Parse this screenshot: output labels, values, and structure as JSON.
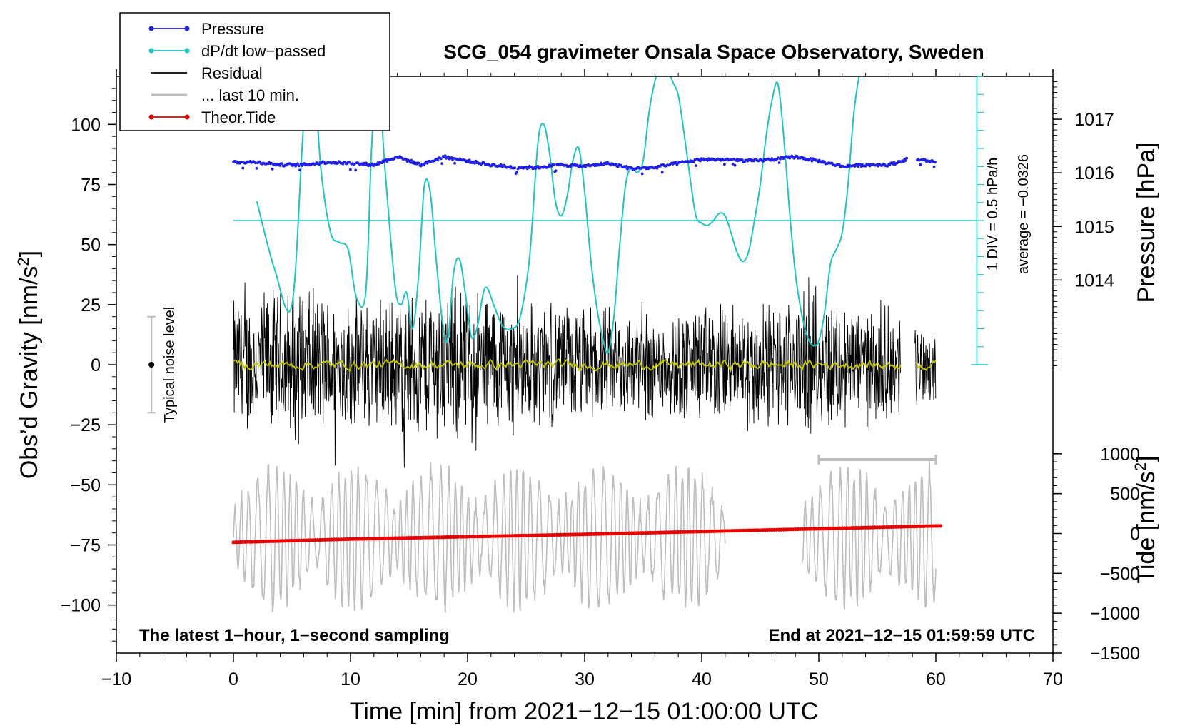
{
  "chart_data": {
    "type": "line",
    "title": "SCG_054 gravimeter Onsala Space Observatory, Sweden",
    "xlabel": "Time [min] from 2021−12−15 01:00:00 UTC",
    "ylabel_left": "Obs’d Gravity [nm/s",
    "ylabel_left_sup": "2",
    "ylabel_left_close": "]",
    "ylabel_right_pressure": "Pressure [hPa]",
    "ylabel_right_tide": "Tide [nm/s",
    "ylabel_right_tide_sup": "2",
    "ylabel_right_tide_close": "]",
    "xlim": [
      -10,
      70
    ],
    "ylim_gravity": [
      -120,
      120
    ],
    "ylim_pressure": [
      1012.3,
      1017.8
    ],
    "ylim_tide": [
      -1500,
      1500
    ],
    "x_ticks": [
      -10,
      0,
      10,
      20,
      30,
      40,
      50,
      60,
      70
    ],
    "x_tick_labels": [
      "−10",
      "0",
      "10",
      "20",
      "30",
      "40",
      "50",
      "60",
      "70"
    ],
    "gravity_ticks": [
      100,
      75,
      50,
      25,
      0,
      -25,
      -50,
      -75,
      -100
    ],
    "gravity_tick_labels": [
      "100",
      "75",
      "50",
      "25",
      "0",
      "−25",
      "−50",
      "−75",
      "−100"
    ],
    "pressure_ticks": [
      1017,
      1016,
      1015,
      1014
    ],
    "pressure_tick_labels": [
      "1017",
      "1016",
      "1015",
      "1014"
    ],
    "tide_ticks": [
      1000,
      500,
      0,
      -500,
      -1000,
      -1500
    ],
    "tide_tick_labels": [
      "1000",
      "500",
      "0",
      "−500",
      "−1000",
      "−1500"
    ],
    "legend": [
      {
        "label": "Pressure",
        "color": "#1f1fe6",
        "marker": true
      },
      {
        "label": "dP/dt low−passed",
        "color": "#20c4c4",
        "marker": true
      },
      {
        "label": "Residual",
        "color": "#000000",
        "marker": false
      },
      {
        "label": "... last 10 min.",
        "color": "#bdbdbd",
        "marker": false
      },
      {
        "label": "Theor.Tide",
        "color": "#e60000",
        "marker": true
      }
    ],
    "dpdt_scale_label": "1 DIV = 0.5 hPa/h",
    "dpdt_average_label": "average = −0.0326",
    "dpdt_zero_level_gravity": 60,
    "noise_label": "Typical noise level",
    "noise_level_nms2": [
      -20,
      20
    ],
    "bottom_left_note": "The latest 1−hour, 1−second sampling",
    "bottom_right_note": "End at 2021−12−15 01:59:59 UTC",
    "last10_range_min": [
      50,
      60
    ],
    "series": [
      {
        "name": "Pressure",
        "axis": "pressure",
        "color": "#1f1fe6",
        "x": [
          0,
          2,
          4,
          6,
          8,
          10,
          12,
          14,
          16,
          18,
          20,
          22,
          24,
          26,
          28,
          30,
          32,
          34,
          36,
          38,
          40,
          42,
          44,
          46,
          48,
          50,
          52,
          54,
          56,
          57.5,
          58.5,
          60
        ],
        "y": [
          1016.2,
          1016.2,
          1016.15,
          1016.15,
          1016.2,
          1016.18,
          1016.15,
          1016.3,
          1016.15,
          1016.3,
          1016.22,
          1016.15,
          1016.1,
          1016.1,
          1016.15,
          1016.12,
          1016.18,
          1016.08,
          1016.1,
          1016.18,
          1016.25,
          1016.25,
          1016.22,
          1016.25,
          1016.3,
          1016.22,
          1016.12,
          1016.15,
          1016.15,
          1016.25,
          1016.25,
          1016.2
        ]
      },
      {
        "name": "dP/dt low−passed",
        "axis": "gravity",
        "color": "#20c4c4",
        "x": [
          2,
          3.5,
          5,
          6,
          6.8,
          7.5,
          8.3,
          9,
          9.8,
          10.5,
          11.3,
          11.8,
          12.3,
          13,
          13.8,
          14.3,
          14.8,
          15.3,
          15.8,
          16.3,
          16.8,
          17.3,
          17.8,
          18.3,
          18.8,
          19.3,
          19.8,
          20.3,
          20.8,
          21.5,
          22.3,
          23,
          23.8,
          24.5,
          25.3,
          26,
          26.5,
          27,
          27.5,
          28,
          28.5,
          29,
          29.5,
          30,
          30.5,
          31,
          31.5,
          32,
          32.5,
          33,
          33.5,
          34,
          34.5,
          35,
          35.5,
          36,
          36.5,
          37,
          37.5,
          38,
          38.5,
          39,
          39.5,
          40,
          40.5,
          41,
          41.5,
          42,
          42.5,
          43,
          43.5,
          44,
          44.5,
          45,
          45.5,
          46,
          46.5,
          47,
          47.5,
          48,
          48.5,
          49,
          49.5,
          50,
          50.5,
          51,
          51.5,
          52,
          52.5,
          53,
          53.5
        ],
        "y": [
          68,
          40,
          25,
          100,
          120,
          80,
          55,
          51,
          48,
          28,
          30,
          90,
          122,
          78,
          33,
          25,
          30,
          15,
          36,
          74,
          72,
          45,
          20,
          10,
          38,
          44,
          30,
          12,
          15,
          32,
          24,
          16,
          15,
          20,
          45,
          92,
          100,
          88,
          68,
          62,
          70,
          85,
          90,
          72,
          45,
          25,
          12,
          5,
          20,
          50,
          75,
          82,
          80,
          85,
          105,
          118,
          125,
          124,
          118,
          112,
          96,
          78,
          62,
          59,
          58,
          60,
          63,
          62,
          55,
          47,
          43,
          47,
          60,
          75,
          95,
          110,
          117,
          95,
          64,
          38,
          22,
          12,
          8,
          10,
          22,
          42,
          48,
          55,
          75,
          105,
          122
        ]
      },
      {
        "name": "Theor.Tide",
        "axis": "tide",
        "color": "#e60000",
        "x": [
          0,
          10,
          20,
          30,
          40,
          50,
          60
        ],
        "y": [
          -110,
          -70,
          -40,
          -10,
          25,
          60,
          95
        ]
      },
      {
        "name": "Residual",
        "axis": "gravity",
        "color": "#000000",
        "envelope_x": [
          0,
          5,
          10,
          15,
          20,
          25,
          30,
          35,
          40,
          45,
          50,
          55,
          57,
          58.5,
          60
        ],
        "envelope_amp": [
          28,
          32,
          26,
          30,
          32,
          26,
          24,
          22,
          24,
          26,
          28,
          24,
          22,
          18,
          18
        ],
        "gaps": [
          [
            57,
            58.2
          ]
        ]
      },
      {
        "name": "... last 10 min.",
        "axis": "gravity",
        "color": "#bdbdbd",
        "offset": -72,
        "gaps": [
          [
            42,
            48.5
          ]
        ]
      }
    ]
  }
}
